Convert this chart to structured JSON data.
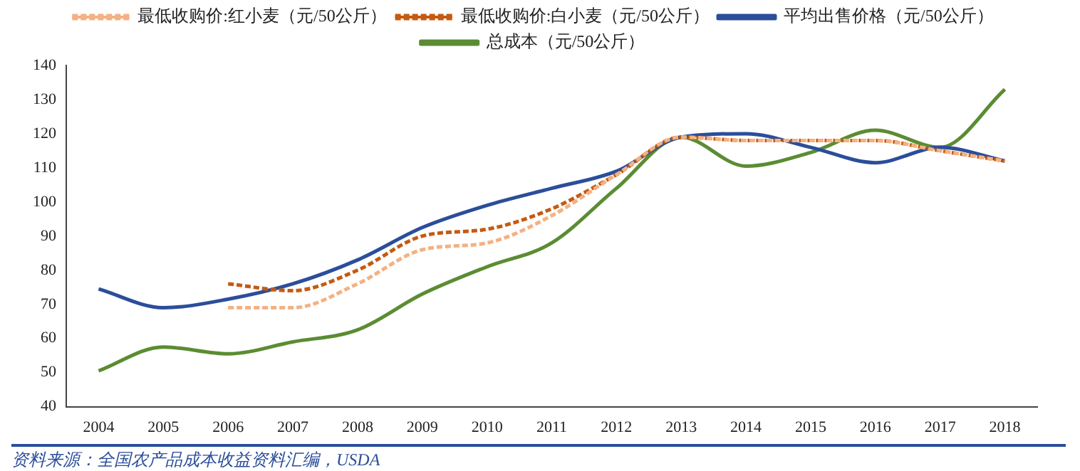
{
  "chart_data": {
    "type": "line",
    "categories": [
      "2004",
      "2005",
      "2006",
      "2007",
      "2008",
      "2009",
      "2010",
      "2011",
      "2012",
      "2013",
      "2014",
      "2015",
      "2016",
      "2017",
      "2018"
    ],
    "series": [
      {
        "name": "总成本（元/50公斤）",
        "color": "#5b8c32",
        "line_style": "solid",
        "values": [
          50.5,
          57.5,
          55.5,
          59,
          62.5,
          73,
          81,
          88,
          104,
          119,
          110.5,
          114.5,
          121,
          116,
          133
        ]
      },
      {
        "name": "平均出售价格（元/50公斤）",
        "color": "#2b4e9a",
        "line_style": "solid",
        "values": [
          74.5,
          69,
          71.5,
          76,
          83,
          92.5,
          99,
          104,
          109,
          119,
          120,
          116,
          111.5,
          116,
          112
        ]
      },
      {
        "name": "最低收购价:白小麦（元/50公斤）",
        "color": "#c55a11",
        "line_style": "dashed",
        "values": [
          null,
          null,
          76,
          74,
          80,
          90,
          92,
          98,
          108,
          119,
          118,
          118,
          118,
          115,
          112
        ]
      },
      {
        "name": "最低收购价:红小麦（元/50公斤）",
        "color": "#f4b183",
        "line_style": "dashed",
        "values": [
          null,
          null,
          69,
          69,
          76,
          86,
          88,
          96,
          108,
          119,
          118,
          118,
          118,
          115,
          112
        ]
      }
    ],
    "ylim": [
      40,
      140
    ],
    "yticks": [
      40,
      50,
      60,
      70,
      80,
      90,
      100,
      110,
      120,
      130,
      140
    ],
    "grid": false,
    "legend": "top",
    "marker": "none",
    "annotations": [
      "资料来源：全国农产品成本收益资料汇编，USDA"
    ]
  }
}
